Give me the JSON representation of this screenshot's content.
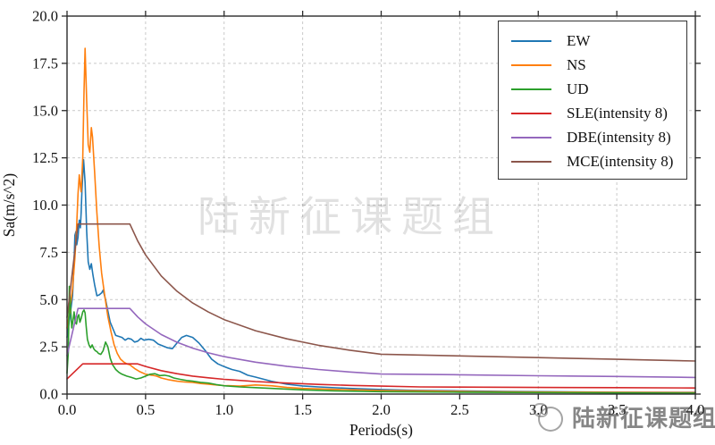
{
  "watermarks": {
    "center_text": "陆新征课题组",
    "corner_text": "陆新征课题组"
  },
  "chart_data": {
    "type": "line",
    "title": "",
    "xlabel": "Periods(s)",
    "ylabel": "Sa(m/s^2)",
    "xlim": [
      0.0,
      4.0
    ],
    "ylim": [
      0.0,
      20.0
    ],
    "xticks": [
      0.0,
      0.5,
      1.0,
      1.5,
      2.0,
      2.5,
      3.0,
      3.5,
      4.0
    ],
    "xtick_labels": [
      "0.0",
      "0.5",
      "1.0",
      "1.5",
      "2.0",
      "2.5",
      "3.0",
      "3.5",
      "4.0"
    ],
    "yticks": [
      0.0,
      2.5,
      5.0,
      7.5,
      10.0,
      12.5,
      15.0,
      17.5,
      20.0
    ],
    "ytick_labels": [
      "0.0",
      "2.5",
      "5.0",
      "7.5",
      "10.0",
      "12.5",
      "15.0",
      "17.5",
      "20.0"
    ],
    "grid": true,
    "grid_color": "#c9c9c9",
    "spine_color": "#2b2b2b",
    "legend_position": "upper right",
    "series": [
      {
        "name": "EW",
        "color": "#1f77b4",
        "points": [
          [
            0,
            3.0
          ],
          [
            0.02,
            4.2
          ],
          [
            0.035,
            5.2
          ],
          [
            0.045,
            7.0
          ],
          [
            0.05,
            8.4
          ],
          [
            0.057,
            8.6
          ],
          [
            0.062,
            7.9
          ],
          [
            0.07,
            8.3
          ],
          [
            0.078,
            9.2
          ],
          [
            0.085,
            8.8
          ],
          [
            0.09,
            9.6
          ],
          [
            0.095,
            10.8
          ],
          [
            0.105,
            12.4
          ],
          [
            0.115,
            11.2
          ],
          [
            0.125,
            8.6
          ],
          [
            0.135,
            7.0
          ],
          [
            0.145,
            6.6
          ],
          [
            0.155,
            6.9
          ],
          [
            0.165,
            6.3
          ],
          [
            0.175,
            5.8
          ],
          [
            0.19,
            5.2
          ],
          [
            0.205,
            5.25
          ],
          [
            0.22,
            5.35
          ],
          [
            0.23,
            5.5
          ],
          [
            0.245,
            5.0
          ],
          [
            0.26,
            4.4
          ],
          [
            0.275,
            3.8
          ],
          [
            0.29,
            3.5
          ],
          [
            0.31,
            3.1
          ],
          [
            0.33,
            3.05
          ],
          [
            0.35,
            3.0
          ],
          [
            0.37,
            2.85
          ],
          [
            0.39,
            2.95
          ],
          [
            0.41,
            2.9
          ],
          [
            0.43,
            2.75
          ],
          [
            0.45,
            2.8
          ],
          [
            0.47,
            2.95
          ],
          [
            0.49,
            2.85
          ],
          [
            0.52,
            2.9
          ],
          [
            0.55,
            2.85
          ],
          [
            0.58,
            2.65
          ],
          [
            0.61,
            2.55
          ],
          [
            0.64,
            2.45
          ],
          [
            0.67,
            2.4
          ],
          [
            0.7,
            2.7
          ],
          [
            0.73,
            3.0
          ],
          [
            0.76,
            3.1
          ],
          [
            0.8,
            3.0
          ],
          [
            0.84,
            2.7
          ],
          [
            0.88,
            2.3
          ],
          [
            0.92,
            1.85
          ],
          [
            0.96,
            1.6
          ],
          [
            1.0,
            1.45
          ],
          [
            1.05,
            1.3
          ],
          [
            1.1,
            1.2
          ],
          [
            1.15,
            1.0
          ],
          [
            1.2,
            0.9
          ],
          [
            1.3,
            0.68
          ],
          [
            1.4,
            0.52
          ],
          [
            1.5,
            0.43
          ],
          [
            1.6,
            0.38
          ],
          [
            1.8,
            0.3
          ],
          [
            2.0,
            0.24
          ],
          [
            2.2,
            0.2
          ],
          [
            2.5,
            0.17
          ],
          [
            2.8,
            0.14
          ],
          [
            3.0,
            0.13
          ],
          [
            3.5,
            0.1
          ],
          [
            4.0,
            0.09
          ]
        ]
      },
      {
        "name": "NS",
        "color": "#ff7f0e",
        "points": [
          [
            0,
            3.5
          ],
          [
            0.02,
            4.6
          ],
          [
            0.035,
            5.6
          ],
          [
            0.05,
            7.2
          ],
          [
            0.06,
            8.6
          ],
          [
            0.07,
            10.6
          ],
          [
            0.078,
            11.6
          ],
          [
            0.085,
            11.0
          ],
          [
            0.09,
            10.7
          ],
          [
            0.1,
            12.5
          ],
          [
            0.108,
            16.0
          ],
          [
            0.115,
            18.3
          ],
          [
            0.125,
            15.5
          ],
          [
            0.135,
            13.2
          ],
          [
            0.145,
            12.8
          ],
          [
            0.155,
            14.1
          ],
          [
            0.162,
            13.6
          ],
          [
            0.175,
            11.8
          ],
          [
            0.19,
            9.6
          ],
          [
            0.205,
            7.8
          ],
          [
            0.22,
            6.4
          ],
          [
            0.24,
            5.2
          ],
          [
            0.26,
            4.1
          ],
          [
            0.28,
            3.3
          ],
          [
            0.3,
            2.6
          ],
          [
            0.32,
            2.15
          ],
          [
            0.34,
            1.85
          ],
          [
            0.36,
            1.7
          ],
          [
            0.38,
            1.6
          ],
          [
            0.4,
            1.55
          ],
          [
            0.43,
            1.35
          ],
          [
            0.46,
            1.2
          ],
          [
            0.5,
            1.05
          ],
          [
            0.54,
            1.0
          ],
          [
            0.57,
            0.95
          ],
          [
            0.6,
            0.85
          ],
          [
            0.65,
            0.75
          ],
          [
            0.7,
            0.68
          ],
          [
            0.75,
            0.64
          ],
          [
            0.8,
            0.62
          ],
          [
            0.85,
            0.56
          ],
          [
            0.9,
            0.52
          ],
          [
            0.95,
            0.48
          ],
          [
            1.0,
            0.45
          ],
          [
            1.1,
            0.42
          ],
          [
            1.2,
            0.48
          ],
          [
            1.3,
            0.44
          ],
          [
            1.4,
            0.35
          ],
          [
            1.5,
            0.3
          ],
          [
            1.7,
            0.25
          ],
          [
            2.0,
            0.19
          ],
          [
            2.3,
            0.16
          ],
          [
            2.6,
            0.13
          ],
          [
            3.0,
            0.11
          ],
          [
            3.5,
            0.09
          ],
          [
            4.0,
            0.08
          ]
        ]
      },
      {
        "name": "UD",
        "color": "#2ca02c",
        "points": [
          [
            0,
            1.1
          ],
          [
            0.008,
            2.2
          ],
          [
            0.015,
            5.7
          ],
          [
            0.022,
            4.6
          ],
          [
            0.03,
            3.5
          ],
          [
            0.038,
            3.9
          ],
          [
            0.045,
            4.35
          ],
          [
            0.052,
            3.8
          ],
          [
            0.06,
            3.7
          ],
          [
            0.068,
            4.1
          ],
          [
            0.075,
            4.2
          ],
          [
            0.082,
            3.8
          ],
          [
            0.09,
            4.0
          ],
          [
            0.1,
            4.35
          ],
          [
            0.108,
            4.45
          ],
          [
            0.115,
            4.3
          ],
          [
            0.122,
            3.6
          ],
          [
            0.13,
            2.9
          ],
          [
            0.14,
            2.6
          ],
          [
            0.15,
            2.45
          ],
          [
            0.16,
            2.6
          ],
          [
            0.17,
            2.4
          ],
          [
            0.18,
            2.3
          ],
          [
            0.19,
            2.25
          ],
          [
            0.2,
            2.15
          ],
          [
            0.215,
            2.1
          ],
          [
            0.23,
            2.3
          ],
          [
            0.245,
            2.75
          ],
          [
            0.26,
            2.5
          ],
          [
            0.275,
            1.9
          ],
          [
            0.29,
            1.55
          ],
          [
            0.31,
            1.3
          ],
          [
            0.33,
            1.15
          ],
          [
            0.35,
            1.05
          ],
          [
            0.38,
            0.95
          ],
          [
            0.41,
            0.88
          ],
          [
            0.44,
            0.8
          ],
          [
            0.47,
            0.85
          ],
          [
            0.5,
            0.95
          ],
          [
            0.53,
            1.05
          ],
          [
            0.56,
            1.08
          ],
          [
            0.59,
            0.98
          ],
          [
            0.62,
            1.0
          ],
          [
            0.65,
            0.95
          ],
          [
            0.68,
            0.85
          ],
          [
            0.72,
            0.78
          ],
          [
            0.76,
            0.72
          ],
          [
            0.8,
            0.68
          ],
          [
            0.85,
            0.62
          ],
          [
            0.9,
            0.58
          ],
          [
            0.95,
            0.5
          ],
          [
            1.0,
            0.44
          ],
          [
            1.1,
            0.38
          ],
          [
            1.2,
            0.34
          ],
          [
            1.35,
            0.28
          ],
          [
            1.5,
            0.22
          ],
          [
            1.7,
            0.17
          ],
          [
            2.0,
            0.13
          ],
          [
            2.5,
            0.1
          ],
          [
            3.0,
            0.08
          ],
          [
            3.5,
            0.06
          ],
          [
            4.0,
            0.05
          ]
        ]
      },
      {
        "name": "SLE(intensity 8)",
        "color": "#d62728",
        "points": [
          [
            0,
            0.8
          ],
          [
            0.1,
            1.6
          ],
          [
            0.45,
            1.6
          ],
          [
            0.5,
            1.46
          ],
          [
            0.6,
            1.24
          ],
          [
            0.7,
            1.08
          ],
          [
            0.8,
            0.95
          ],
          [
            0.9,
            0.86
          ],
          [
            1.0,
            0.78
          ],
          [
            1.2,
            0.66
          ],
          [
            1.4,
            0.58
          ],
          [
            1.6,
            0.51
          ],
          [
            1.8,
            0.46
          ],
          [
            2.0,
            0.42
          ],
          [
            2.25,
            0.38
          ],
          [
            2.5,
            0.37
          ],
          [
            3.0,
            0.35
          ],
          [
            3.5,
            0.34
          ],
          [
            4.0,
            0.32
          ]
        ]
      },
      {
        "name": "DBE(intensity 8)",
        "color": "#9467bd",
        "points": [
          [
            0,
            2.04
          ],
          [
            0.07,
            4.53
          ],
          [
            0.4,
            4.53
          ],
          [
            0.45,
            4.08
          ],
          [
            0.5,
            3.71
          ],
          [
            0.6,
            3.15
          ],
          [
            0.7,
            2.74
          ],
          [
            0.8,
            2.43
          ],
          [
            0.9,
            2.18
          ],
          [
            1.0,
            1.98
          ],
          [
            1.2,
            1.69
          ],
          [
            1.4,
            1.47
          ],
          [
            1.6,
            1.3
          ],
          [
            1.8,
            1.17
          ],
          [
            2.0,
            1.06
          ],
          [
            2.5,
            1.02
          ],
          [
            3.0,
            0.97
          ],
          [
            3.5,
            0.93
          ],
          [
            4.0,
            0.88
          ]
        ]
      },
      {
        "name": "MCE(intensity 8)",
        "color": "#8c564b",
        "points": [
          [
            0,
            4.05
          ],
          [
            0.07,
            9.0
          ],
          [
            0.4,
            9.0
          ],
          [
            0.45,
            8.1
          ],
          [
            0.5,
            7.36
          ],
          [
            0.6,
            6.25
          ],
          [
            0.7,
            5.44
          ],
          [
            0.8,
            4.82
          ],
          [
            0.9,
            4.34
          ],
          [
            1.0,
            3.94
          ],
          [
            1.2,
            3.35
          ],
          [
            1.4,
            2.92
          ],
          [
            1.6,
            2.58
          ],
          [
            1.8,
            2.32
          ],
          [
            2.0,
            2.11
          ],
          [
            2.5,
            2.02
          ],
          [
            3.0,
            1.93
          ],
          [
            3.5,
            1.84
          ],
          [
            4.0,
            1.75
          ]
        ]
      }
    ]
  }
}
